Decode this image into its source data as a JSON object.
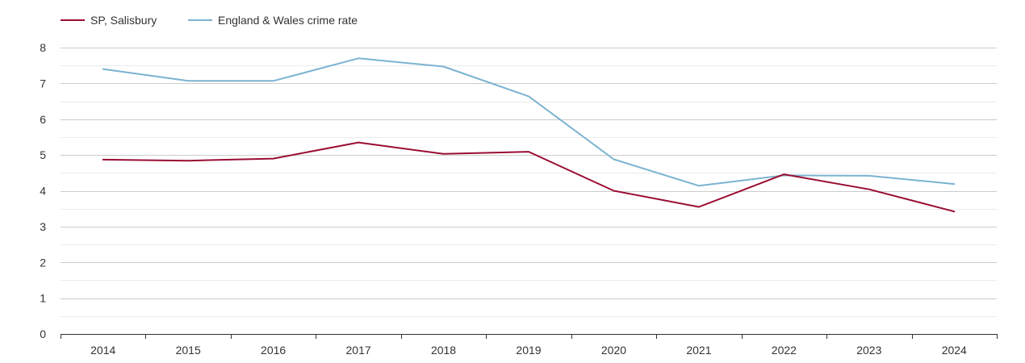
{
  "chart_data": {
    "type": "line",
    "title": "",
    "xlabel": "",
    "ylabel": "",
    "ylim": [
      0,
      8
    ],
    "yticks": [
      0,
      1,
      2,
      3,
      4,
      5,
      6,
      7,
      8
    ],
    "grid": true,
    "legend_position": "top-left",
    "categories": [
      "2014",
      "2015",
      "2016",
      "2017",
      "2018",
      "2019",
      "2020",
      "2021",
      "2022",
      "2023",
      "2024"
    ],
    "series": [
      {
        "name": "SP, Salisbury",
        "color": "#9a0d32",
        "values": [
          4.87,
          4.84,
          4.9,
          5.35,
          5.03,
          5.09,
          4.0,
          3.55,
          4.46,
          4.04,
          3.42
        ]
      },
      {
        "name": "England & Wales crime rate",
        "color": "#7bb3d1",
        "values": [
          7.4,
          7.07,
          7.07,
          7.7,
          7.47,
          6.64,
          4.88,
          4.14,
          4.43,
          4.42,
          4.19
        ]
      }
    ]
  }
}
